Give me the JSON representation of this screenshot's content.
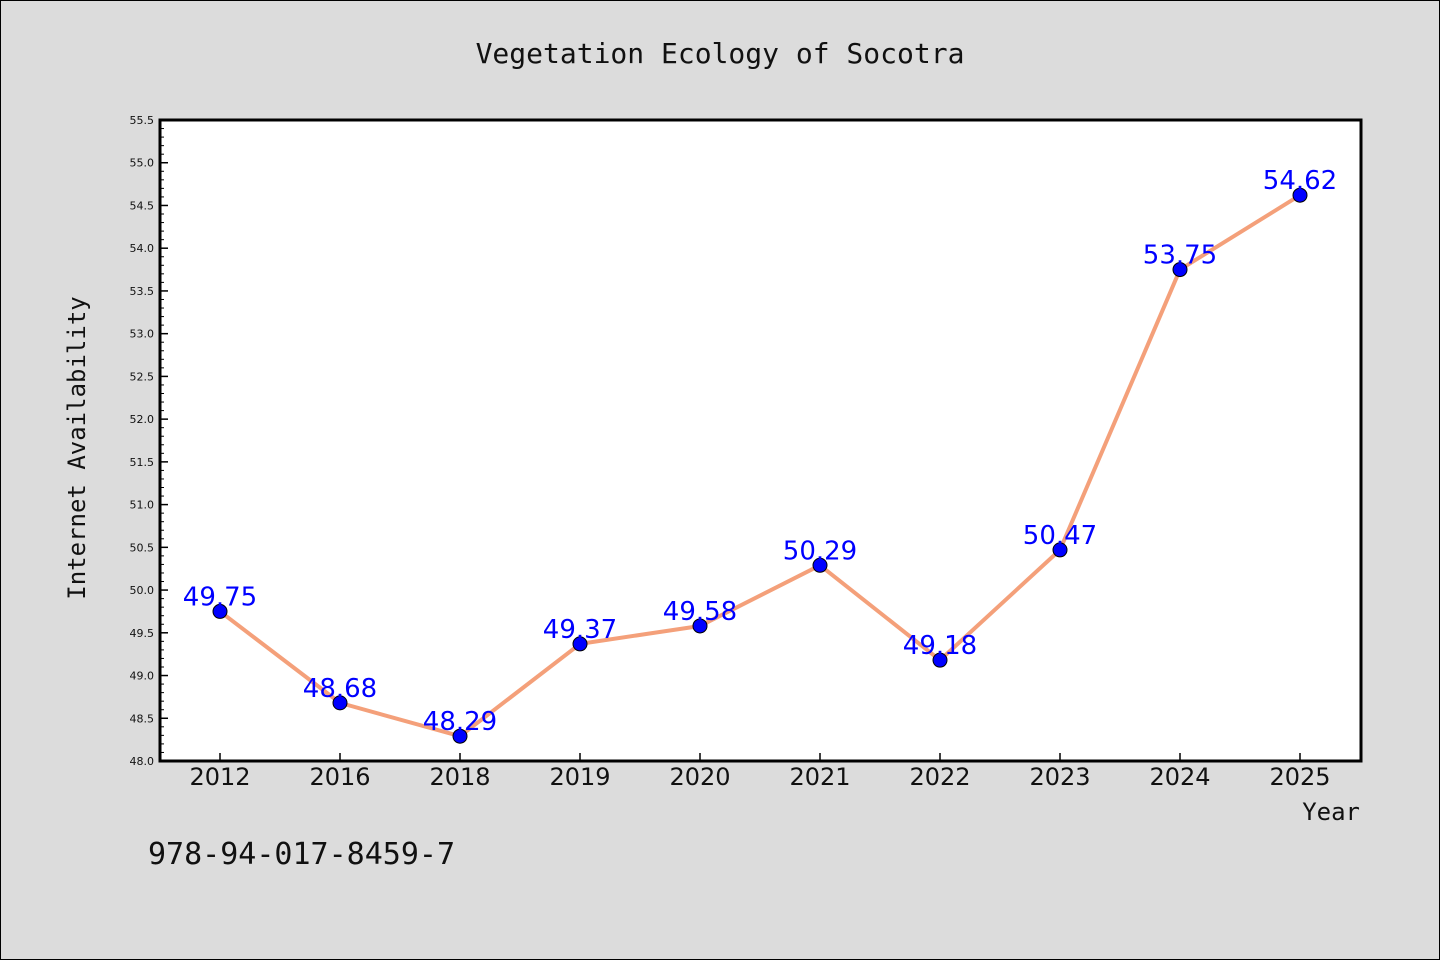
{
  "chart_data": {
    "type": "line",
    "title": "Vegetation Ecology of Socotra",
    "xlabel": "Year",
    "ylabel": "Internet Availability",
    "categories": [
      "2012",
      "2016",
      "2018",
      "2019",
      "2020",
      "2021",
      "2022",
      "2023",
      "2024",
      "2025"
    ],
    "values": [
      49.75,
      48.68,
      48.29,
      49.37,
      49.58,
      50.29,
      49.18,
      50.47,
      53.75,
      54.62
    ],
    "data_labels": [
      "49.75",
      "48.68",
      "48.29",
      "49.37",
      "49.58",
      "50.29",
      "49.18",
      "50.47",
      "53.75",
      "54.62"
    ],
    "ylim": [
      48.0,
      55.5
    ],
    "yticks": [
      "48.0",
      "48.5",
      "49.0",
      "49.5",
      "50.0",
      "50.5",
      "51.0",
      "51.5",
      "52.0",
      "52.5",
      "53.0",
      "53.5",
      "54.0",
      "54.5",
      "55.0",
      "55.5"
    ],
    "grid": false,
    "line_color": "#f4a07a",
    "marker_color": "#0000ff",
    "label_color": "#0000ff",
    "background_color": "#dcdcdc",
    "plot_background": "#ffffff"
  },
  "footer": {
    "code": "978-94-017-8459-7"
  }
}
